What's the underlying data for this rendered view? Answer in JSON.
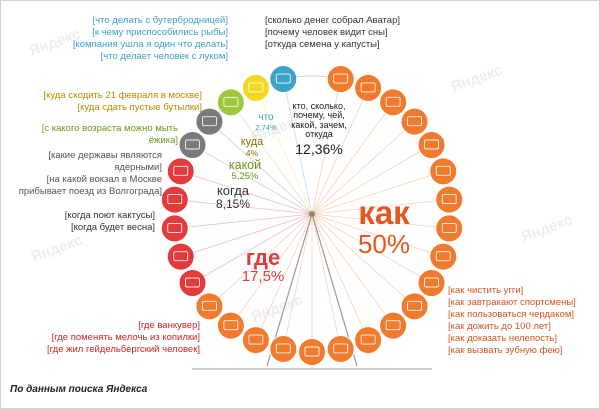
{
  "chart_data": {
    "type": "pie",
    "slices": [
      {
        "name": "как",
        "value": 50,
        "display": "50%",
        "color": "#f07a2d"
      },
      {
        "name": "где",
        "value": 17.5,
        "display": "17,5%",
        "color": "#e33b3b"
      },
      {
        "name": "когда",
        "value": 8.15,
        "display": "8,15%",
        "color": "#7a7a7a"
      },
      {
        "name": "какой",
        "value": 5.25,
        "display": "5,25%",
        "color": "#9cc93a"
      },
      {
        "name": "куда",
        "value": 4,
        "display": "4%",
        "color": "#f2d81e"
      },
      {
        "name": "что",
        "value": 2.74,
        "display": "2,74%",
        "color": "#3ba3c8"
      },
      {
        "name": "кто, сколько, почему, чей, какой, зачем, откуда",
        "value": 12.36,
        "display": "12,36%",
        "color": "#f07a2d"
      }
    ]
  },
  "groups": {
    "kto": {
      "color": "#333333",
      "items": [
        "[сколько денег собрал Аватар]",
        "[почему человек видит сны]",
        "[откуда семена у капусты]"
      ]
    },
    "chto": {
      "color": "#3f9fc4",
      "items": [
        "[что делать с бутербродницей]",
        "[к чему приспособились рыбы]",
        "[компания ушла я один что делать]",
        "[что делает человек с луком]"
      ]
    },
    "kuda": {
      "color": "#b58a00",
      "items": [
        "[куда сходить 21 февраля в москве]",
        "[куда сдать пустые бутылки]"
      ]
    },
    "kakoy": {
      "color": "#6a9a17",
      "items": [
        "[с какого возраста можно мыть",
        "ёжика]"
      ]
    },
    "kogda_gray": {
      "color": "#555555",
      "items": [
        "[какие державы являются",
        "ядерными]",
        "[на какой вокзал в Москве",
        "прибывает поезд из Волгограда]"
      ]
    },
    "kogda": {
      "color": "#333333",
      "items": [
        "[когда поют кактусы]",
        "[когда будет весна]"
      ]
    },
    "gde": {
      "color": "#c72525",
      "items": [
        "[где ванкувер]",
        "[где поменять мелочь из копилки]",
        "[где жил гейдельбергский человек]"
      ]
    },
    "kak": {
      "color": "#d9531e",
      "items": [
        "[как чистить угги]",
        "[как завтракают спортсмены]",
        "[как пользоваться чердаком]",
        "[как дожить до 100 лет]",
        "[как доказать нелепость]",
        "[как вызвать зубную фею]"
      ]
    }
  },
  "watermark": "Яндекс",
  "source": "По данным поиска Яндекса"
}
